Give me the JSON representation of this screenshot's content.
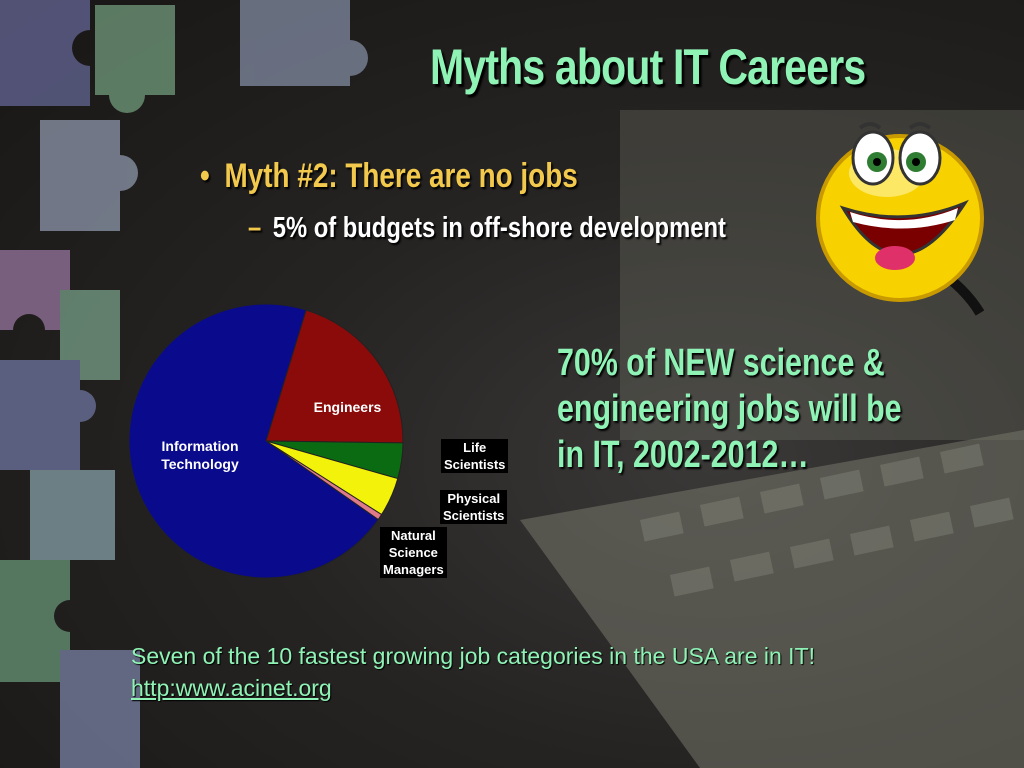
{
  "slide": {
    "title": "Myths about IT Careers",
    "bullet": "Myth #2: There are no jobs",
    "sub_bullet": "5% of budgets in off-shore development",
    "callout_line1": "70% of NEW science &",
    "callout_line2": "engineering jobs will be",
    "callout_line3": "in IT, 2002-2012…",
    "footer_text": "Seven of the 10 fastest growing job categories in the USA are in IT!",
    "footer_link": "http:www.acinet.org"
  },
  "colors": {
    "title": "#8ff3b6",
    "bullet": "#f2c94c",
    "it_slice": "#0a0a8c",
    "engineers_slice": "#8b0a0a",
    "life_slice": "#0b6b12",
    "physical_slice": "#f2f20a",
    "managers_slice": "#e07a8a"
  },
  "chart_data": {
    "type": "pie",
    "title": "",
    "slices": [
      {
        "label": "Information Technology",
        "value": 70,
        "color": "#0a0a8c"
      },
      {
        "label": "Engineers",
        "value": 20.5,
        "color": "#8b0a0a"
      },
      {
        "label": "Life Scientists",
        "value": 4.2,
        "color": "#0b6b12"
      },
      {
        "label": "Physical Scientists",
        "value": 4.6,
        "color": "#f2f20a"
      },
      {
        "label": "Natural Science Managers",
        "value": 0.7,
        "color": "#e07a8a"
      }
    ],
    "labels": {
      "it": "Information Technology",
      "engineers": "Engineers",
      "life": "Life Scientists",
      "physical": "Physical Scientists",
      "managers": "Natural Science Managers"
    },
    "labels_split": {
      "it": [
        "Information",
        "Technology"
      ],
      "life": [
        "Life",
        "Scientists"
      ],
      "physical": [
        "Physical",
        "Scientists"
      ],
      "managers": [
        "Natural",
        "Science",
        "Managers"
      ]
    }
  }
}
